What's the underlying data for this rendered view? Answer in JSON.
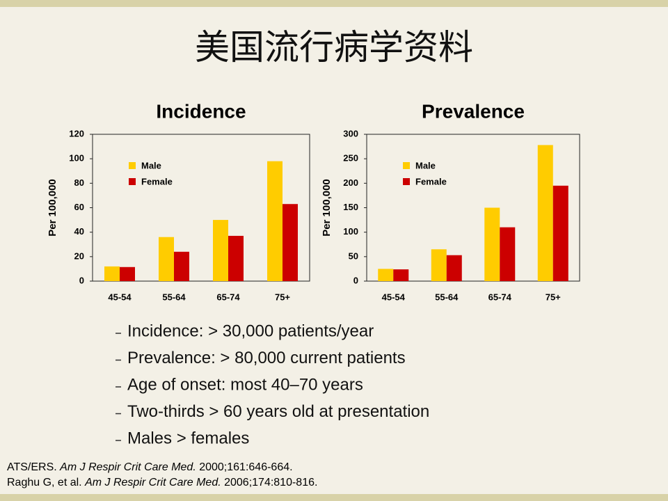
{
  "title": "美国流行病学资料",
  "chart_data": [
    {
      "type": "bar",
      "title": "Incidence",
      "y_label": "Per 100,000",
      "categories": [
        "45-54",
        "55-64",
        "65-74",
        "75+"
      ],
      "series": [
        {
          "name": "Male",
          "color": "#ffcc00",
          "values": [
            12,
            36,
            50,
            98
          ]
        },
        {
          "name": "Female",
          "color": "#cc0000",
          "values": [
            11.5,
            24,
            37,
            63
          ]
        }
      ],
      "ylim": [
        0,
        120
      ],
      "yticks": [
        0,
        20,
        40,
        60,
        80,
        100,
        120
      ],
      "grid": false,
      "legend": "upper-left"
    },
    {
      "type": "bar",
      "title": "Prevalence",
      "y_label": "Per 100,000",
      "categories": [
        "45-54",
        "55-64",
        "65-74",
        "75+"
      ],
      "series": [
        {
          "name": "Male",
          "color": "#ffcc00",
          "values": [
            25,
            65,
            150,
            278
          ]
        },
        {
          "name": "Female",
          "color": "#cc0000",
          "values": [
            24,
            53,
            110,
            195
          ]
        }
      ],
      "ylim": [
        0,
        300
      ],
      "yticks": [
        0,
        50,
        100,
        150,
        200,
        250,
        300
      ],
      "grid": false,
      "legend": "upper-left"
    }
  ],
  "bullets": [
    "Incidence: > 30,000 patients/year",
    "Prevalence: > 80,000 current patients",
    "Age of onset: most 40–70 years",
    "Two-thirds > 60 years old at presentation",
    "Males > females"
  ],
  "references": [
    [
      "ATS/ERS. ",
      "Am J Respir Crit Care Med.",
      " 2000;161:646-664."
    ],
    [
      "Raghu G, et al. ",
      "Am J Respir Crit Care Med.",
      " 2006;174:810-816."
    ]
  ]
}
